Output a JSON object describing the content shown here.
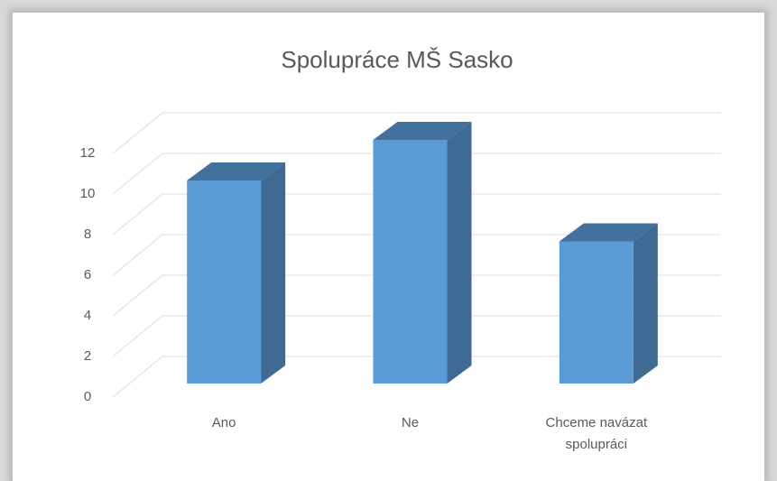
{
  "chart_data": {
    "type": "bar3d",
    "title": "Spolupráce MŠ Sasko",
    "categories": [
      "Ano",
      "Ne",
      "Chceme navázat spolupráci"
    ],
    "values": [
      10,
      12,
      7
    ],
    "color": "#5b9bd5",
    "ylim": [
      0,
      12
    ],
    "yticks": [
      0,
      2,
      4,
      6,
      8,
      10,
      12
    ],
    "grid": true
  }
}
